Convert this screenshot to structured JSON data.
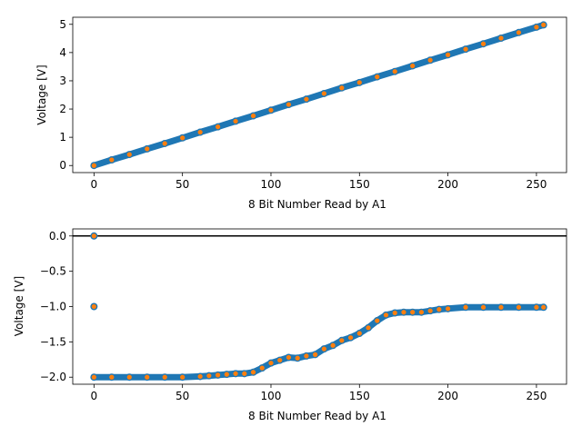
{
  "chart_data": [
    {
      "type": "scatter",
      "xlabel": "8 Bit Number Read by A1",
      "ylabel": "Voltage [V]",
      "xlim": [
        -12,
        267
      ],
      "ylim": [
        -0.25,
        5.25
      ],
      "x_ticks": [
        0,
        50,
        100,
        150,
        200,
        250
      ],
      "y_ticks": [
        0,
        1,
        2,
        3,
        4,
        5
      ],
      "x_tick_labels": [
        "0",
        "50",
        "100",
        "150",
        "200",
        "250"
      ],
      "y_tick_labels": [
        "0",
        "1",
        "2",
        "3",
        "4",
        "5"
      ],
      "grid": false,
      "legend": "none",
      "series": [
        {
          "color": "#1f77b4",
          "style": "line+markers",
          "x": [
            0,
            10,
            20,
            30,
            40,
            50,
            60,
            70,
            80,
            90,
            100,
            110,
            120,
            130,
            140,
            150,
            160,
            170,
            180,
            190,
            200,
            210,
            220,
            230,
            240,
            250,
            254
          ],
          "y": [
            0.0,
            0.2,
            0.39,
            0.59,
            0.78,
            0.98,
            1.18,
            1.37,
            1.57,
            1.76,
            1.96,
            2.16,
            2.35,
            2.55,
            2.75,
            2.94,
            3.14,
            3.33,
            3.53,
            3.73,
            3.92,
            4.12,
            4.31,
            4.51,
            4.71,
            4.9,
            4.98
          ]
        },
        {
          "color": "#ff7f0e",
          "style": "markers",
          "x": [
            0,
            10,
            20,
            30,
            40,
            50,
            60,
            70,
            80,
            90,
            100,
            110,
            120,
            130,
            140,
            150,
            160,
            170,
            180,
            190,
            200,
            210,
            220,
            230,
            240,
            250,
            254
          ],
          "y": [
            0.0,
            0.2,
            0.39,
            0.59,
            0.78,
            0.98,
            1.18,
            1.37,
            1.57,
            1.76,
            1.96,
            2.16,
            2.35,
            2.55,
            2.75,
            2.94,
            3.14,
            3.33,
            3.53,
            3.73,
            3.92,
            4.12,
            4.31,
            4.51,
            4.71,
            4.9,
            4.98
          ]
        }
      ]
    },
    {
      "type": "scatter",
      "xlabel": "8 Bit Number Read by A1",
      "ylabel": "Voltage [V]",
      "xlim": [
        -12,
        267
      ],
      "ylim": [
        -2.1,
        0.1
      ],
      "x_ticks": [
        0,
        50,
        100,
        150,
        200,
        250
      ],
      "y_ticks": [
        0.0,
        -0.5,
        -1.0,
        -1.5,
        -2.0
      ],
      "x_tick_labels": [
        "0",
        "50",
        "100",
        "150",
        "200",
        "250"
      ],
      "y_tick_labels": [
        "0.0",
        "−0.5",
        "−1.0",
        "−1.5",
        "−2.0"
      ],
      "grid": false,
      "legend": "none",
      "reference_line": {
        "y": 0.0,
        "color": "#000000"
      },
      "isolated_points": [
        {
          "x": 0,
          "y": 0.0
        },
        {
          "x": 0,
          "y": -1.0
        }
      ],
      "series": [
        {
          "color": "#1f77b4",
          "style": "line+markers",
          "x": [
            0,
            10,
            20,
            30,
            40,
            50,
            60,
            65,
            70,
            75,
            80,
            85,
            90,
            95,
            100,
            105,
            110,
            115,
            120,
            125,
            130,
            135,
            140,
            145,
            150,
            155,
            160,
            165,
            170,
            175,
            180,
            185,
            190,
            195,
            200,
            210,
            220,
            230,
            240,
            250,
            254
          ],
          "y": [
            -2.0,
            -2.0,
            -2.0,
            -2.0,
            -2.0,
            -2.0,
            -1.99,
            -1.98,
            -1.97,
            -1.96,
            -1.95,
            -1.95,
            -1.93,
            -1.87,
            -1.8,
            -1.76,
            -1.72,
            -1.73,
            -1.7,
            -1.68,
            -1.6,
            -1.55,
            -1.48,
            -1.44,
            -1.38,
            -1.3,
            -1.2,
            -1.12,
            -1.09,
            -1.08,
            -1.08,
            -1.08,
            -1.06,
            -1.04,
            -1.03,
            -1.01,
            -1.01,
            -1.01,
            -1.01,
            -1.01,
            -1.01
          ]
        },
        {
          "color": "#ff7f0e",
          "style": "markers",
          "x": [
            0,
            10,
            20,
            30,
            40,
            50,
            60,
            65,
            70,
            75,
            80,
            85,
            90,
            95,
            100,
            105,
            110,
            115,
            120,
            125,
            130,
            135,
            140,
            145,
            150,
            155,
            160,
            165,
            170,
            175,
            180,
            185,
            190,
            195,
            200,
            210,
            220,
            230,
            240,
            250,
            254
          ],
          "y": [
            -2.0,
            -2.0,
            -2.0,
            -2.0,
            -2.0,
            -2.0,
            -1.99,
            -1.98,
            -1.97,
            -1.96,
            -1.95,
            -1.95,
            -1.93,
            -1.87,
            -1.8,
            -1.76,
            -1.72,
            -1.73,
            -1.7,
            -1.68,
            -1.6,
            -1.55,
            -1.48,
            -1.44,
            -1.38,
            -1.3,
            -1.2,
            -1.12,
            -1.09,
            -1.08,
            -1.08,
            -1.08,
            -1.06,
            -1.04,
            -1.03,
            -1.01,
            -1.01,
            -1.01,
            -1.01,
            -1.01,
            -1.01
          ]
        }
      ]
    }
  ]
}
